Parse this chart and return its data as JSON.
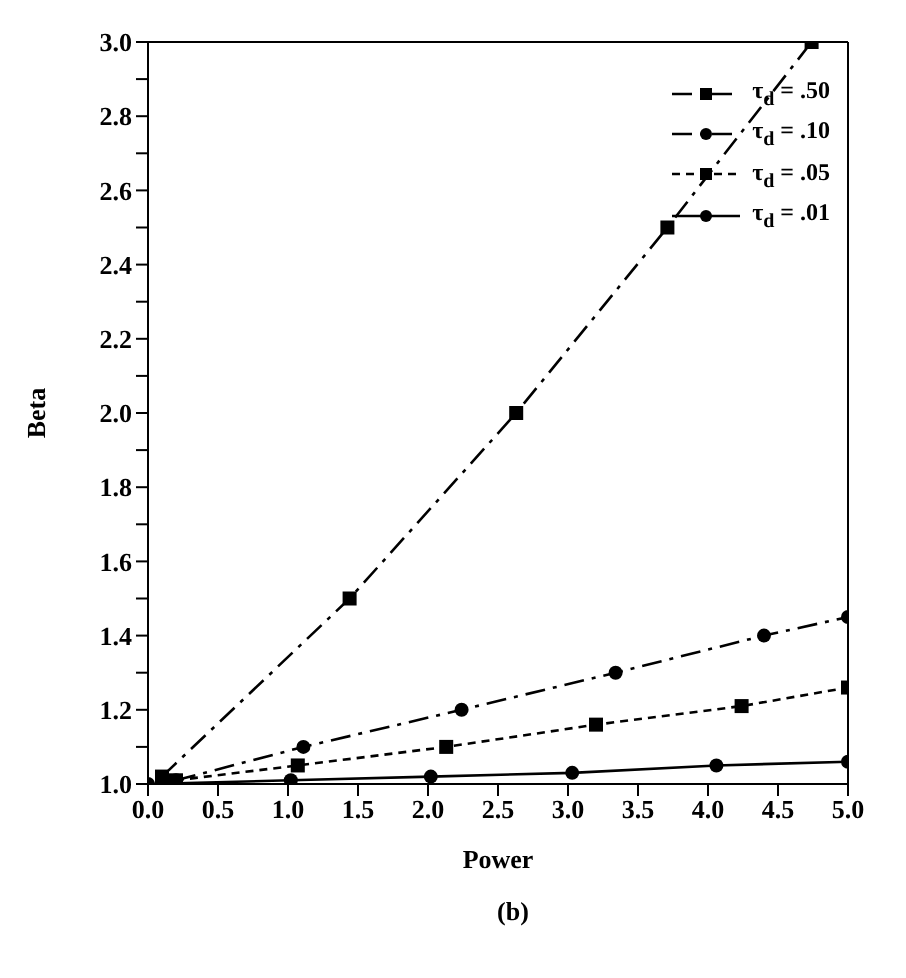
{
  "chart_data": {
    "type": "line",
    "xlabel": "Power",
    "ylabel": "Beta",
    "annotations": [
      "(b)"
    ],
    "xlim": [
      0,
      5
    ],
    "ylim": [
      1,
      3
    ],
    "xticks": [
      {
        "value": 0,
        "label": "0.0"
      },
      {
        "value": 0.5,
        "label": "0.5"
      },
      {
        "value": 1,
        "label": "1.0"
      },
      {
        "value": 1.5,
        "label": "1.5"
      },
      {
        "value": 2,
        "label": "2.0"
      },
      {
        "value": 2.5,
        "label": "2.5"
      },
      {
        "value": 3,
        "label": "3.0"
      },
      {
        "value": 3.5,
        "label": "3.5"
      },
      {
        "value": 4,
        "label": "4.0"
      },
      {
        "value": 4.5,
        "label": "4.5"
      },
      {
        "value": 5,
        "label": "5.0"
      }
    ],
    "yticks": [
      {
        "value": 1,
        "label": "1.0"
      },
      {
        "value": 1.1,
        "label": null
      },
      {
        "value": 1.2,
        "label": "1.2"
      },
      {
        "value": 1.3,
        "label": null
      },
      {
        "value": 1.4,
        "label": "1.4"
      },
      {
        "value": 1.5,
        "label": null
      },
      {
        "value": 1.6,
        "label": "1.6"
      },
      {
        "value": 1.7,
        "label": null
      },
      {
        "value": 1.8,
        "label": "1.8"
      },
      {
        "value": 1.9,
        "label": null
      },
      {
        "value": 2,
        "label": "2.0"
      },
      {
        "value": 2.1,
        "label": null
      },
      {
        "value": 2.2,
        "label": "2.2"
      },
      {
        "value": 2.3,
        "label": null
      },
      {
        "value": 2.4,
        "label": "2.4"
      },
      {
        "value": 2.5,
        "label": null
      },
      {
        "value": 2.6,
        "label": "2.6"
      },
      {
        "value": 2.7,
        "label": null
      },
      {
        "value": 2.8,
        "label": "2.8"
      },
      {
        "value": 2.9,
        "label": null
      },
      {
        "value": 3,
        "label": "3.0"
      }
    ],
    "legend": "top right",
    "series": [
      {
        "name": "τ$_{d}$ = .50",
        "color": "#000000",
        "marker": "square",
        "line_style": "dashed",
        "x": [
          0.1,
          1.44,
          2.63,
          3.71,
          4.74
        ],
        "values": [
          1.02,
          1.5,
          2.0,
          2.5,
          3.0
        ]
      },
      {
        "name": "τ$_{d}$ = .10",
        "color": "#000000",
        "marker": "circle",
        "line_style": "dashed",
        "x": [
          0.2,
          1.11,
          2.24,
          3.34,
          4.4,
          5.0
        ],
        "values": [
          1.01,
          1.1,
          1.2,
          1.3,
          1.4,
          1.45
        ]
      },
      {
        "name": "τ$_{d}$ = .05",
        "color": "#000000",
        "marker": "square",
        "line_style": "dotted",
        "x": [
          0.2,
          1.07,
          2.13,
          3.2,
          4.24,
          5.0
        ],
        "values": [
          1.01,
          1.05,
          1.1,
          1.16,
          1.21,
          1.26
        ]
      },
      {
        "name": "τ$_{d}$ = .01",
        "color": "#000000",
        "marker": "circle",
        "line_style": "solid",
        "x": [
          0.0,
          1.02,
          2.02,
          3.03,
          4.06,
          5.0
        ],
        "values": [
          1.0,
          1.01,
          1.02,
          1.03,
          1.05,
          1.06
        ]
      }
    ]
  }
}
